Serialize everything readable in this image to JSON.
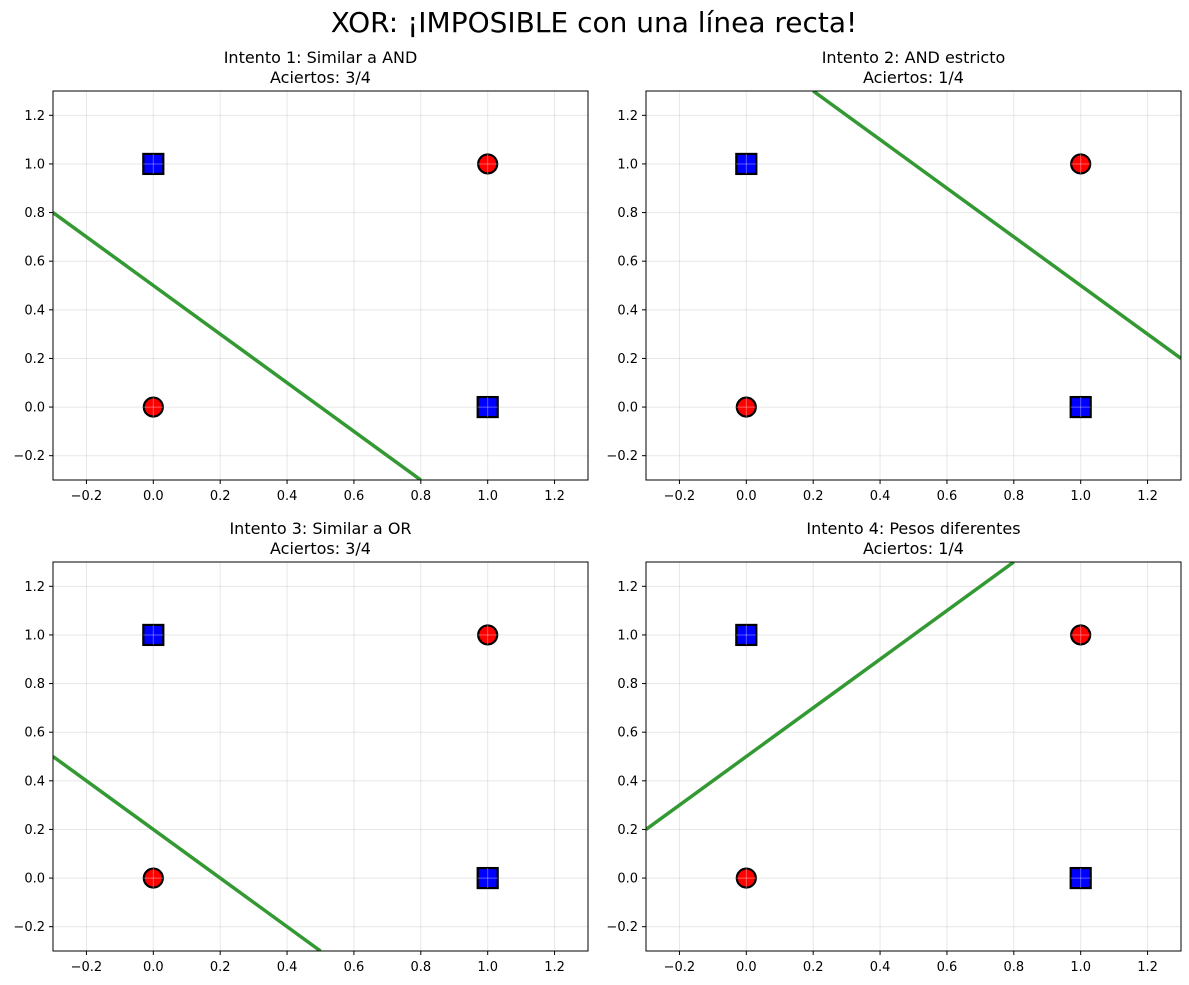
{
  "figure": {
    "suptitle": "XOR: ¡IMPOSIBLE con una línea recta!"
  },
  "chart_data": [
    {
      "type": "scatter",
      "title": "Intento 1: Similar a AND",
      "subtitle": "Aciertos: 3/4",
      "xlim": [
        -0.3,
        1.3
      ],
      "ylim": [
        -0.3,
        1.3
      ],
      "xticks": [
        -0.2,
        0.0,
        0.2,
        0.4,
        0.6,
        0.8,
        1.0,
        1.2
      ],
      "yticks": [
        -0.2,
        0.0,
        0.2,
        0.4,
        0.6,
        0.8,
        1.0,
        1.2
      ],
      "grid": true,
      "series": [
        {
          "marker": "circle",
          "color": "#ff0000",
          "points": [
            [
              0,
              0
            ],
            [
              1,
              1
            ]
          ]
        },
        {
          "marker": "square",
          "color": "#0000ff",
          "points": [
            [
              0,
              1
            ],
            [
              1,
              0
            ]
          ]
        }
      ],
      "decision_line": {
        "color": "#339933",
        "points": [
          [
            -0.3,
            0.8
          ],
          [
            0.8,
            -0.3
          ]
        ]
      }
    },
    {
      "type": "scatter",
      "title": "Intento 2: AND estricto",
      "subtitle": "Aciertos: 1/4",
      "xlim": [
        -0.3,
        1.3
      ],
      "ylim": [
        -0.3,
        1.3
      ],
      "xticks": [
        -0.2,
        0.0,
        0.2,
        0.4,
        0.6,
        0.8,
        1.0,
        1.2
      ],
      "yticks": [
        -0.2,
        0.0,
        0.2,
        0.4,
        0.6,
        0.8,
        1.0,
        1.2
      ],
      "grid": true,
      "series": [
        {
          "marker": "circle",
          "color": "#ff0000",
          "points": [
            [
              0,
              0
            ],
            [
              1,
              1
            ]
          ]
        },
        {
          "marker": "square",
          "color": "#0000ff",
          "points": [
            [
              0,
              1
            ],
            [
              1,
              0
            ]
          ]
        }
      ],
      "decision_line": {
        "color": "#339933",
        "points": [
          [
            0.2,
            1.3
          ],
          [
            1.3,
            0.2
          ]
        ]
      }
    },
    {
      "type": "scatter",
      "title": "Intento 3: Similar a OR",
      "subtitle": "Aciertos: 3/4",
      "xlim": [
        -0.3,
        1.3
      ],
      "ylim": [
        -0.3,
        1.3
      ],
      "xticks": [
        -0.2,
        0.0,
        0.2,
        0.4,
        0.6,
        0.8,
        1.0,
        1.2
      ],
      "yticks": [
        -0.2,
        0.0,
        0.2,
        0.4,
        0.6,
        0.8,
        1.0,
        1.2
      ],
      "grid": true,
      "series": [
        {
          "marker": "circle",
          "color": "#ff0000",
          "points": [
            [
              0,
              0
            ],
            [
              1,
              1
            ]
          ]
        },
        {
          "marker": "square",
          "color": "#0000ff",
          "points": [
            [
              0,
              1
            ],
            [
              1,
              0
            ]
          ]
        }
      ],
      "decision_line": {
        "color": "#339933",
        "points": [
          [
            -0.3,
            0.5
          ],
          [
            0.5,
            -0.3
          ]
        ]
      }
    },
    {
      "type": "scatter",
      "title": "Intento 4: Pesos diferentes",
      "subtitle": "Aciertos: 1/4",
      "xlim": [
        -0.3,
        1.3
      ],
      "ylim": [
        -0.3,
        1.3
      ],
      "xticks": [
        -0.2,
        0.0,
        0.2,
        0.4,
        0.6,
        0.8,
        1.0,
        1.2
      ],
      "yticks": [
        -0.2,
        0.0,
        0.2,
        0.4,
        0.6,
        0.8,
        1.0,
        1.2
      ],
      "grid": true,
      "series": [
        {
          "marker": "circle",
          "color": "#ff0000",
          "points": [
            [
              0,
              0
            ],
            [
              1,
              1
            ]
          ]
        },
        {
          "marker": "square",
          "color": "#0000ff",
          "points": [
            [
              0,
              1
            ],
            [
              1,
              0
            ]
          ]
        }
      ],
      "decision_line": {
        "color": "#339933",
        "points": [
          [
            -0.3,
            0.2
          ],
          [
            0.8,
            1.3
          ]
        ]
      }
    }
  ]
}
